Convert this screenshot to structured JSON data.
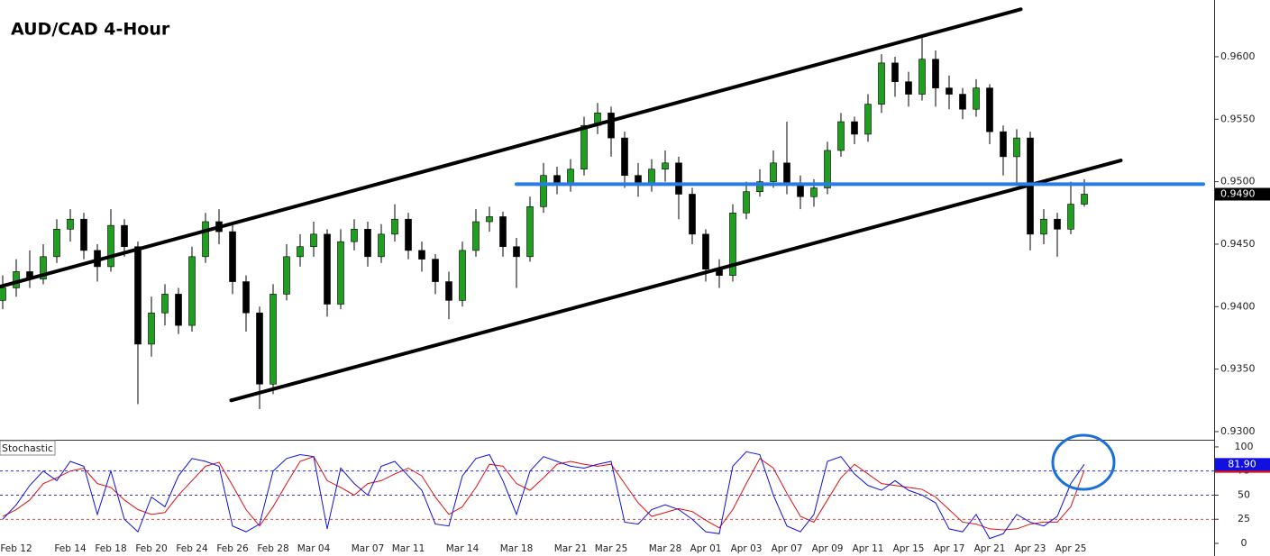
{
  "chart_data": [
    {
      "type": "candlestick",
      "title": "AUD/CAD 4-Hour",
      "categories": [
        null,
        "Feb 12",
        null,
        null,
        null,
        "Feb 14",
        null,
        null,
        "Feb 18",
        null,
        null,
        "Feb 20",
        null,
        null,
        "Feb 24",
        null,
        null,
        "Feb 26",
        null,
        null,
        "Feb 28",
        null,
        null,
        "Mar 04",
        null,
        null,
        null,
        "Mar 07",
        null,
        null,
        "Mar 11",
        null,
        null,
        null,
        "Mar 14",
        null,
        null,
        null,
        "Mar 18",
        null,
        null,
        null,
        "Mar 21",
        null,
        null,
        "Mar 25",
        null,
        null,
        null,
        "Mar 28",
        null,
        null,
        "Apr 01",
        null,
        null,
        "Apr 03",
        null,
        null,
        "Apr 07",
        null,
        null,
        "Apr 09",
        null,
        null,
        "Apr 11",
        null,
        null,
        "Apr 15",
        null,
        null,
        "Apr 17",
        null,
        null,
        "Apr 21",
        null,
        null,
        "Apr 23",
        null,
        null,
        "Apr 25",
        null
      ],
      "open": [
        0.9405,
        0.9415,
        0.9428,
        0.9422,
        0.944,
        0.9462,
        0.947,
        0.9445,
        0.9432,
        0.9465,
        0.9448,
        0.937,
        0.9395,
        0.941,
        0.9385,
        0.944,
        0.9468,
        0.946,
        0.942,
        0.9395,
        0.9338,
        0.941,
        0.944,
        0.9448,
        0.9458,
        0.9402,
        0.9452,
        0.9462,
        0.944,
        0.9458,
        0.947,
        0.9445,
        0.9438,
        0.942,
        0.9405,
        0.9445,
        0.9468,
        0.9472,
        0.9448,
        0.944,
        0.948,
        0.9505,
        0.9498,
        0.951,
        0.9545,
        0.9555,
        0.9535,
        0.9505,
        0.9498,
        0.951,
        0.9515,
        0.949,
        0.9458,
        0.943,
        0.9425,
        0.9475,
        0.9492,
        0.95,
        0.9515,
        0.9498,
        0.9488,
        0.9495,
        0.9525,
        0.9548,
        0.9538,
        0.9562,
        0.9595,
        0.958,
        0.957,
        0.9598,
        0.9575,
        0.957,
        0.9558,
        0.9575,
        0.954,
        0.952,
        0.9535,
        0.9458,
        0.947,
        0.9462,
        0.9482
      ],
      "high": [
        0.9425,
        0.9438,
        0.9445,
        0.945,
        0.947,
        0.9478,
        0.9475,
        0.945,
        0.9478,
        0.947,
        0.9452,
        0.9408,
        0.9418,
        0.9415,
        0.9448,
        0.9475,
        0.9478,
        0.9465,
        0.9425,
        0.94,
        0.9418,
        0.945,
        0.9458,
        0.9468,
        0.9462,
        0.9462,
        0.947,
        0.9468,
        0.9466,
        0.9482,
        0.9475,
        0.9452,
        0.9442,
        0.9428,
        0.9452,
        0.9478,
        0.948,
        0.9476,
        0.9455,
        0.9488,
        0.9515,
        0.9512,
        0.9518,
        0.9552,
        0.9563,
        0.956,
        0.954,
        0.9515,
        0.9518,
        0.9525,
        0.952,
        0.9495,
        0.9462,
        0.9438,
        0.9482,
        0.95,
        0.951,
        0.9525,
        0.9548,
        0.9505,
        0.9502,
        0.9532,
        0.9555,
        0.9552,
        0.957,
        0.9602,
        0.96,
        0.9588,
        0.9615,
        0.9605,
        0.9585,
        0.9575,
        0.9582,
        0.9578,
        0.9545,
        0.9542,
        0.954,
        0.9478,
        0.9475,
        0.95,
        0.9502
      ],
      "low": [
        0.9398,
        0.9408,
        0.9415,
        0.9418,
        0.9435,
        0.9452,
        0.9438,
        0.942,
        0.9428,
        0.944,
        0.9322,
        0.936,
        0.9385,
        0.9378,
        0.938,
        0.9435,
        0.945,
        0.941,
        0.938,
        0.9318,
        0.933,
        0.9405,
        0.9432,
        0.944,
        0.9392,
        0.9398,
        0.9445,
        0.9432,
        0.9435,
        0.9452,
        0.9438,
        0.9428,
        0.941,
        0.939,
        0.94,
        0.944,
        0.946,
        0.944,
        0.9415,
        0.9436,
        0.9475,
        0.949,
        0.9492,
        0.9505,
        0.9538,
        0.952,
        0.9495,
        0.9488,
        0.9492,
        0.95,
        0.947,
        0.945,
        0.942,
        0.9415,
        0.942,
        0.947,
        0.9488,
        0.9495,
        0.949,
        0.9478,
        0.948,
        0.949,
        0.952,
        0.953,
        0.9532,
        0.9555,
        0.9568,
        0.956,
        0.9565,
        0.956,
        0.9558,
        0.955,
        0.9552,
        0.953,
        0.9505,
        0.9498,
        0.9445,
        0.945,
        0.944,
        0.9458,
        0.948
      ],
      "close": [
        0.9415,
        0.9428,
        0.9422,
        0.944,
        0.9462,
        0.947,
        0.9445,
        0.9432,
        0.9465,
        0.9448,
        0.937,
        0.9395,
        0.941,
        0.9385,
        0.944,
        0.9468,
        0.946,
        0.942,
        0.9395,
        0.9338,
        0.941,
        0.944,
        0.9448,
        0.9458,
        0.9402,
        0.9452,
        0.9462,
        0.944,
        0.9458,
        0.947,
        0.9445,
        0.9438,
        0.942,
        0.9405,
        0.9445,
        0.9468,
        0.9472,
        0.9448,
        0.944,
        0.948,
        0.9505,
        0.9498,
        0.951,
        0.9545,
        0.9555,
        0.9535,
        0.9505,
        0.9498,
        0.951,
        0.9515,
        0.949,
        0.9458,
        0.943,
        0.9425,
        0.9475,
        0.9492,
        0.95,
        0.9515,
        0.9498,
        0.9488,
        0.9495,
        0.9525,
        0.9548,
        0.9538,
        0.9562,
        0.9595,
        0.958,
        0.957,
        0.9598,
        0.9575,
        0.957,
        0.9558,
        0.9575,
        0.954,
        0.952,
        0.9535,
        0.9458,
        0.947,
        0.9462,
        0.9482,
        0.949
      ],
      "up_color": "#1f9e1f",
      "down_color": "#000000",
      "ylim": [
        0.92942,
        0.96454
      ],
      "yticks": [
        {
          "value": 0.93,
          "label": "0.9300"
        },
        {
          "value": 0.935,
          "label": "0.9350"
        },
        {
          "value": 0.94,
          "label": "0.9400"
        },
        {
          "value": 0.945,
          "label": "0.9450"
        },
        {
          "value": 0.95,
          "label": "0.9500"
        },
        {
          "value": 0.955,
          "label": "0.9550"
        },
        {
          "value": 0.96,
          "label": "0.9600"
        }
      ],
      "current_price": {
        "value": 0.949,
        "label": "0.9490"
      },
      "trendlines": [
        {
          "color": "#000000",
          "x": [
            -0.2,
            75.3
          ],
          "y": [
            0.9416,
            0.9638
          ]
        },
        {
          "color": "#000000",
          "x": [
            16.9,
            82.7
          ],
          "y": [
            0.9325,
            0.9517
          ]
        },
        {
          "color": "#2a7be4",
          "x": [
            38.0,
            88.8
          ],
          "y": [
            0.9498,
            0.9498
          ]
        }
      ]
    },
    {
      "type": "line",
      "title": "Stochastic",
      "series": [
        {
          "color": "#1010e0",
          "values": [
            25,
            40,
            60,
            75,
            65,
            85,
            80,
            30,
            75,
            25,
            12,
            48,
            38,
            70,
            88,
            85,
            80,
            18,
            12,
            20,
            75,
            88,
            92,
            90,
            15,
            78,
            62,
            50,
            80,
            85,
            70,
            55,
            20,
            18,
            70,
            88,
            92,
            65,
            30,
            75,
            90,
            85,
            80,
            78,
            82,
            85,
            22,
            20,
            35,
            40,
            35,
            25,
            12,
            10,
            80,
            95,
            92,
            50,
            18,
            12,
            30,
            85,
            90,
            72,
            60,
            55,
            65,
            55,
            50,
            42,
            15,
            12,
            30,
            5,
            10,
            30,
            22,
            18,
            28,
            62,
            81.9
          ]
        },
        {
          "color": "#e01010",
          "values": [
            28,
            35,
            45,
            62,
            68,
            75,
            78,
            62,
            58,
            45,
            35,
            30,
            32,
            50,
            65,
            80,
            84,
            60,
            35,
            18,
            38,
            62,
            85,
            90,
            65,
            58,
            50,
            62,
            65,
            72,
            78,
            70,
            48,
            30,
            38,
            58,
            82,
            80,
            62,
            55,
            68,
            82,
            85,
            82,
            80,
            82,
            62,
            42,
            28,
            32,
            36,
            33,
            24,
            16,
            35,
            62,
            88,
            78,
            52,
            28,
            22,
            45,
            68,
            82,
            72,
            62,
            60,
            58,
            56,
            48,
            35,
            22,
            20,
            15,
            14,
            15,
            20,
            22,
            22,
            38,
            76
          ]
        }
      ],
      "ylim": [
        -13.1,
        106.5
      ],
      "yticks": [
        0,
        25,
        50,
        75,
        100
      ],
      "levels": [
        {
          "value": 75,
          "color": "#1010c0"
        },
        {
          "value": 50,
          "color": "#000080"
        },
        {
          "value": 25,
          "color": "#c01010"
        }
      ],
      "current_label": {
        "value": 81.9,
        "label": "81.90"
      }
    }
  ]
}
